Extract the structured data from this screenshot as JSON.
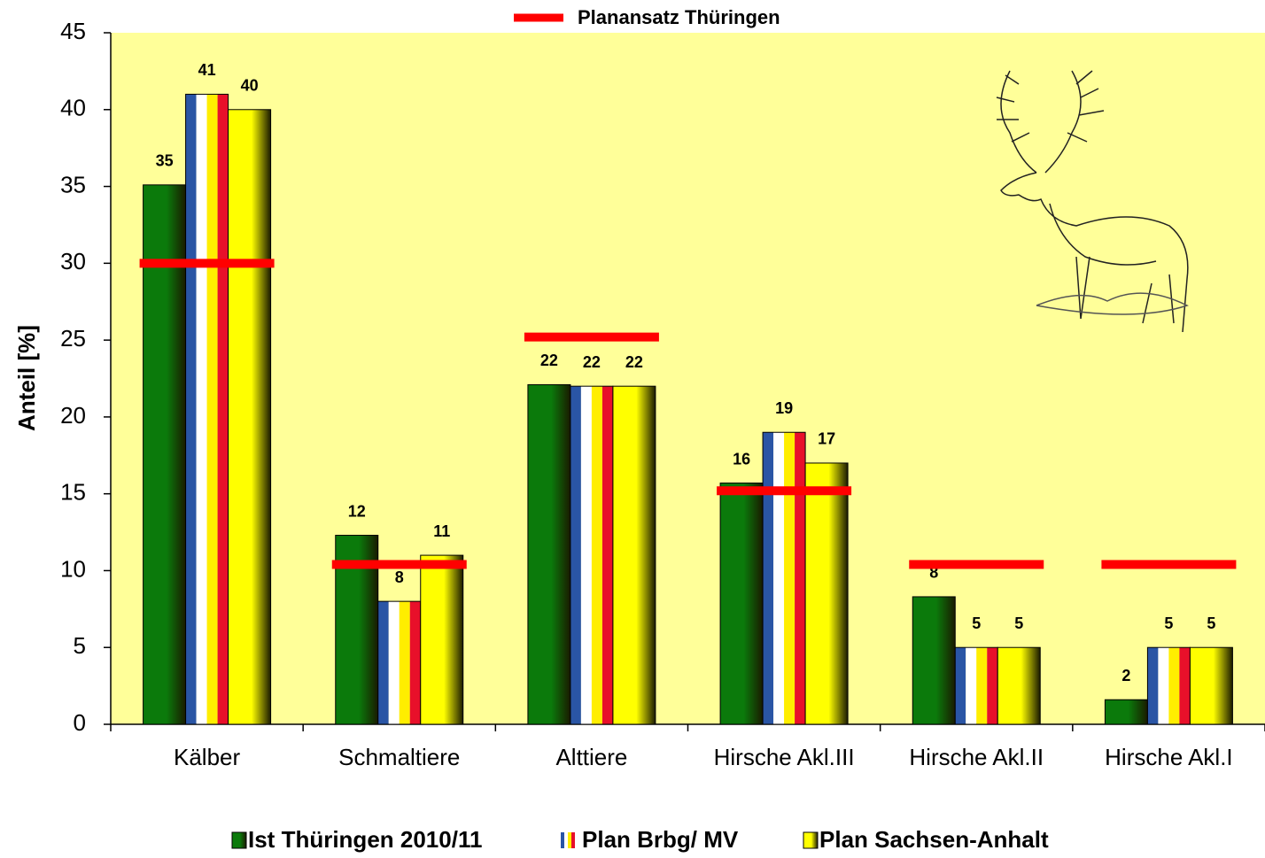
{
  "chart_data": {
    "type": "bar",
    "y_label": "Anteil [%]",
    "categories": [
      "Kälber",
      "Schmaltiere",
      "Alttiere",
      "Hirsche Akl.III",
      "Hirsche Akl.II",
      "Hirsche Akl.I"
    ],
    "series": [
      {
        "name": "Ist Thüringen 2010/11",
        "color": "#0b7a0b",
        "values": [
          35.1,
          12.3,
          22.1,
          15.7,
          8.3,
          1.6
        ],
        "value_labels": [
          "35",
          "12",
          "22",
          "16",
          "8",
          "2"
        ]
      },
      {
        "name": "Plan Brbg/ MV",
        "color": "#2a55a5",
        "colors": [
          "#2a55a5",
          "#ffffff",
          "#ffee00",
          "#e8102a"
        ],
        "values": [
          41,
          8,
          22,
          19,
          5,
          5
        ]
      },
      {
        "name": "Plan Sachsen-Anhalt",
        "color": "#ffff00",
        "values": [
          40,
          11,
          22,
          17,
          5,
          5
        ]
      },
      {
        "name": "Planansatz Thüringen",
        "color": "#ff0000",
        "kind": "hline",
        "values": [
          30,
          10.4,
          25.2,
          15.2,
          10.4,
          10.4
        ]
      }
    ],
    "ylim": [
      0,
      45
    ],
    "yticks": [
      0,
      5,
      10,
      15,
      20,
      25,
      30,
      35,
      40,
      45
    ],
    "plot_background": "#ffff99",
    "grid": false
  }
}
